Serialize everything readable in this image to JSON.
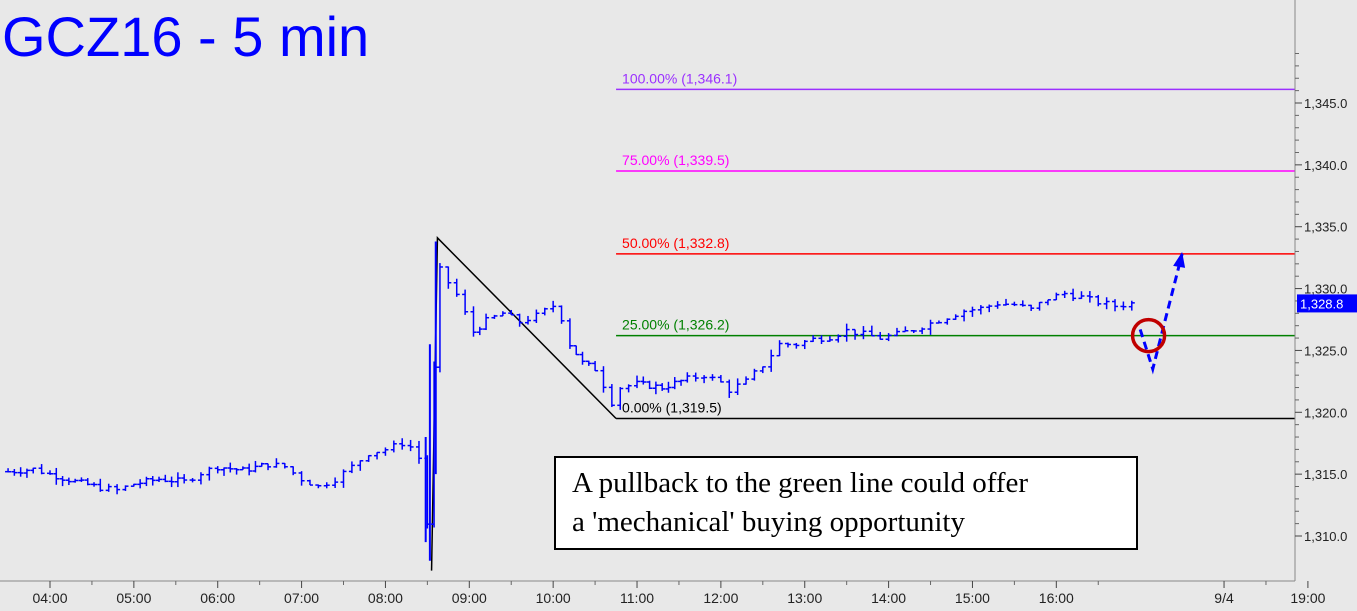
{
  "chart_data": {
    "type": "bar",
    "subtype": "ohlc-price-chart",
    "title": "GCZ16 - 5 min",
    "annotation": "A pullback to the green line could offer\na 'mechanical' buying opportunity",
    "x_tick_labels": [
      "04:00",
      "05:00",
      "06:00",
      "07:00",
      "08:00",
      "09:00",
      "10:00",
      "11:00",
      "12:00",
      "13:00",
      "14:00",
      "15:00",
      "16:00",
      "9/4",
      "19:00"
    ],
    "y_ticks": [
      1310.0,
      1315.0,
      1320.0,
      1325.0,
      1330.0,
      1335.0,
      1340.0,
      1345.0
    ],
    "y_tick_labels": [
      "1,310.0",
      "1,315.0",
      "1,320.0",
      "1,325.0",
      "1,330.0",
      "1,335.0",
      "1,340.0",
      "1,345.0"
    ],
    "ylim": [
      1306.5,
      1350.5
    ],
    "last_price": 1328.8,
    "last_price_label": "1,328.8",
    "fib_levels": [
      {
        "label": "100.00% (1,346.1)",
        "value": 1346.1,
        "color": "#9b30ff"
      },
      {
        "label": "75.00% (1,339.5)",
        "value": 1339.5,
        "color": "#ff00ff"
      },
      {
        "label": "50.00% (1,332.8)",
        "value": 1332.8,
        "color": "#ff0000"
      },
      {
        "label": "25.00% (1,326.2)",
        "value": 1326.2,
        "color": "#008000"
      },
      {
        "label": "0.00% (1,319.5)",
        "value": 1319.5,
        "color": "#000000"
      }
    ],
    "swing": {
      "high": 1334.1,
      "low": 1319.5
    },
    "price_path_hours": [
      [
        3.5,
        1315.2
      ],
      [
        3.8,
        1315.4
      ],
      [
        4.0,
        1315.0
      ],
      [
        4.3,
        1314.4
      ],
      [
        4.6,
        1313.9
      ],
      [
        4.8,
        1313.7
      ],
      [
        5.0,
        1314.2
      ],
      [
        5.3,
        1314.6
      ],
      [
        5.6,
        1314.4
      ],
      [
        5.8,
        1315.1
      ],
      [
        6.0,
        1315.6
      ],
      [
        6.3,
        1315.3
      ],
      [
        6.6,
        1315.8
      ],
      [
        6.8,
        1315.6
      ],
      [
        7.0,
        1314.6
      ],
      [
        7.2,
        1314.0
      ],
      [
        7.4,
        1314.6
      ],
      [
        7.6,
        1315.6
      ],
      [
        7.8,
        1316.7
      ],
      [
        8.0,
        1317.0
      ],
      [
        8.2,
        1317.5
      ],
      [
        8.3,
        1317.2
      ],
      [
        8.4,
        1316.3
      ],
      [
        8.5,
        1311.0
      ],
      [
        8.58,
        1323.5
      ],
      [
        8.65,
        1331.5
      ],
      [
        8.75,
        1330.5
      ],
      [
        8.85,
        1329.5
      ],
      [
        8.95,
        1328.0
      ],
      [
        9.05,
        1326.5
      ],
      [
        9.2,
        1327.4
      ],
      [
        9.4,
        1328.0
      ],
      [
        9.6,
        1327.3
      ],
      [
        9.8,
        1327.8
      ],
      [
        10.0,
        1328.6
      ],
      [
        10.1,
        1327.6
      ],
      [
        10.2,
        1325.5
      ],
      [
        10.35,
        1324.0
      ],
      [
        10.5,
        1323.5
      ],
      [
        10.6,
        1322.2
      ],
      [
        10.7,
        1320.8
      ],
      [
        10.8,
        1322.0
      ],
      [
        11.0,
        1322.3
      ],
      [
        11.3,
        1322.0
      ],
      [
        11.6,
        1322.7
      ],
      [
        11.8,
        1323.0
      ],
      [
        12.0,
        1322.4
      ],
      [
        12.1,
        1321.8
      ],
      [
        12.3,
        1322.5
      ],
      [
        12.5,
        1323.8
      ],
      [
        12.7,
        1325.5
      ],
      [
        12.9,
        1325.5
      ],
      [
        13.1,
        1325.9
      ],
      [
        13.3,
        1326.1
      ],
      [
        13.5,
        1326.6
      ],
      [
        13.7,
        1326.3
      ],
      [
        13.9,
        1326.0
      ],
      [
        14.1,
        1326.3
      ],
      [
        14.3,
        1326.7
      ],
      [
        14.5,
        1327.2
      ],
      [
        14.7,
        1327.7
      ],
      [
        14.9,
        1328.2
      ],
      [
        15.1,
        1328.4
      ],
      [
        15.3,
        1328.8
      ],
      [
        15.5,
        1328.7
      ],
      [
        15.7,
        1328.3
      ],
      [
        15.9,
        1329.2
      ],
      [
        16.1,
        1329.6
      ],
      [
        16.3,
        1329.3
      ],
      [
        16.5,
        1328.9
      ],
      [
        16.7,
        1328.6
      ],
      [
        16.9,
        1328.8
      ],
      [
        17.0,
        1328.3
      ]
    ],
    "projection_hours": [
      [
        17.0,
        1326.7
      ],
      [
        17.15,
        1323.5
      ],
      [
        17.3,
        1327.5
      ],
      [
        17.5,
        1332.8
      ]
    ],
    "circle_at": [
      17.1,
      1326.2
    ]
  }
}
